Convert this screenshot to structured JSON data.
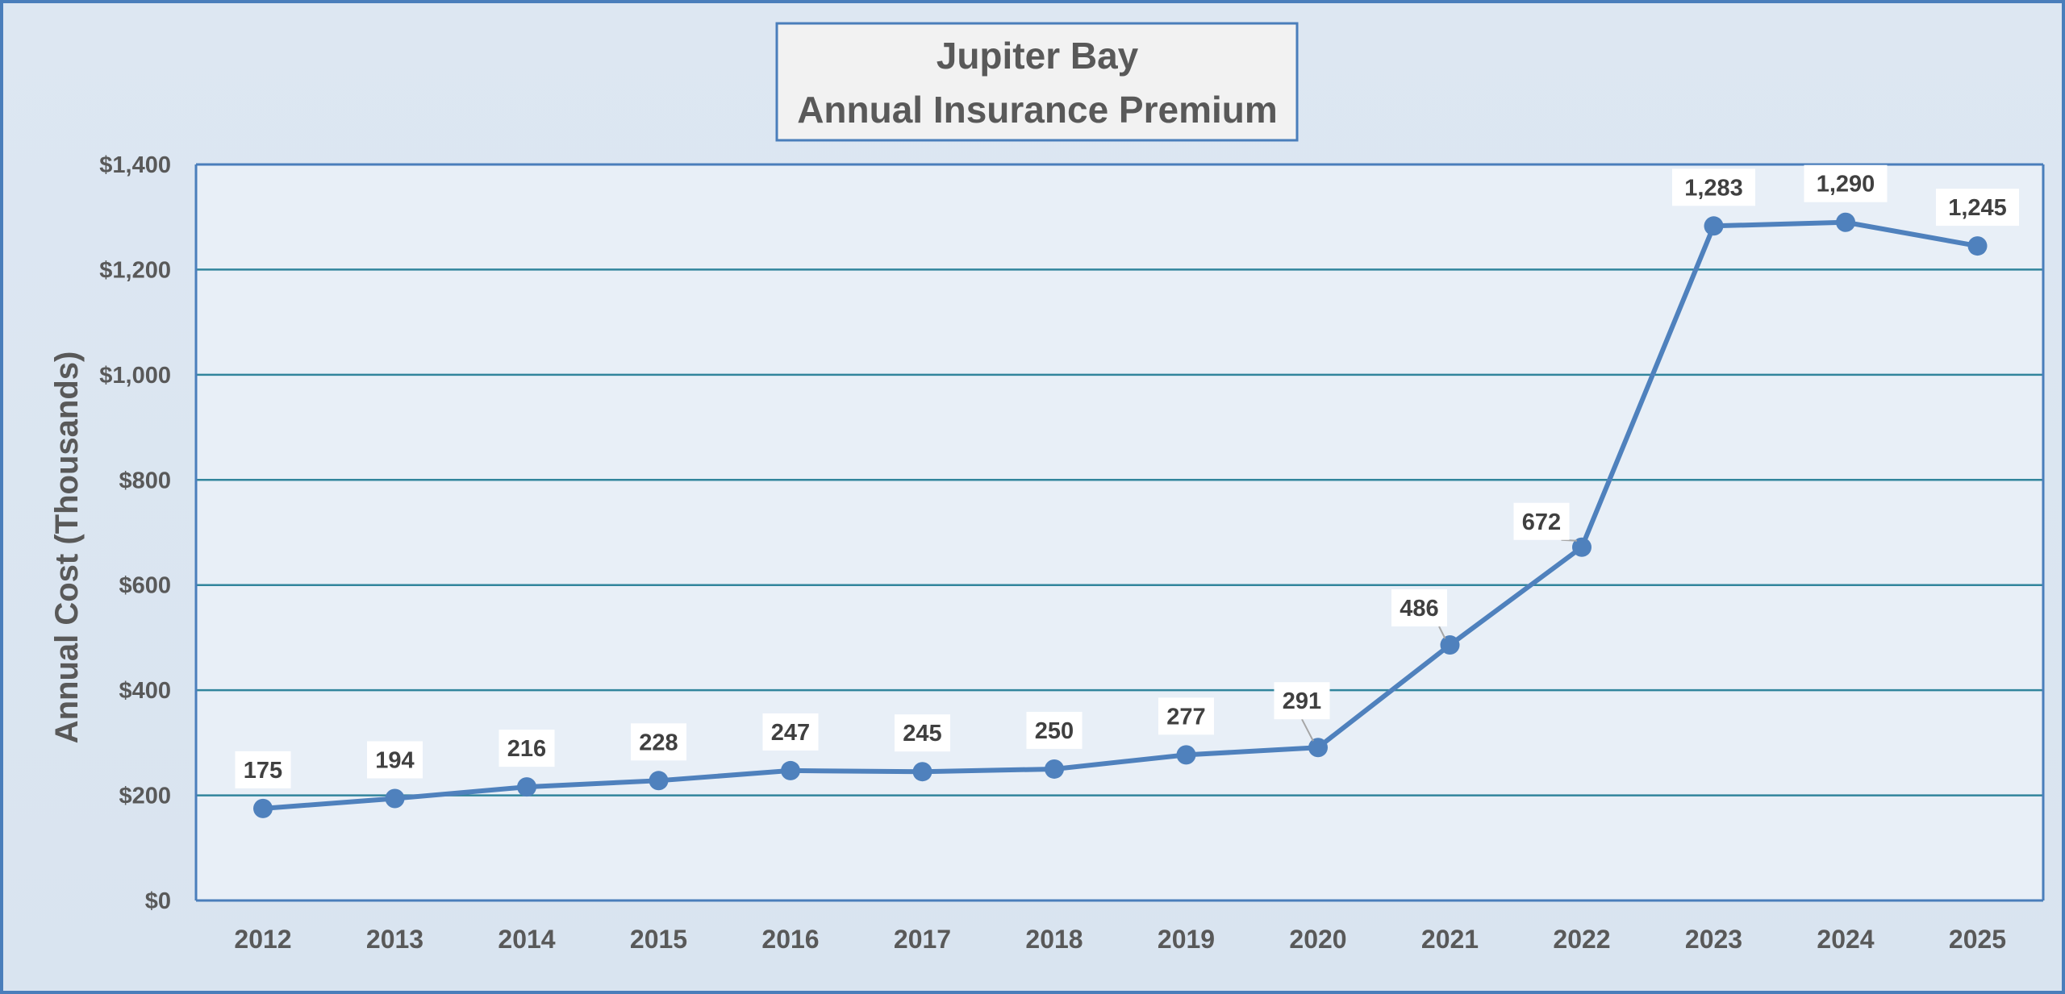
{
  "chart_data": {
    "type": "line",
    "title_lines": [
      "Jupiter Bay",
      "Annual Insurance Premium"
    ],
    "ylabel": "Annual Cost (Thousands)",
    "xlabel": "",
    "x": [
      "2012",
      "2013",
      "2014",
      "2015",
      "2016",
      "2017",
      "2018",
      "2019",
      "2020",
      "2021",
      "2022",
      "2023",
      "2024",
      "2025"
    ],
    "series": [
      {
        "values": [
          175,
          194,
          216,
          228,
          247,
          245,
          250,
          277,
          291,
          486,
          672,
          1283,
          1290,
          1245
        ]
      }
    ],
    "data_labels": [
      "175",
      "194",
      "216",
      "228",
      "247",
      "245",
      "250",
      "277",
      "291",
      "486",
      "672",
      "1,283",
      "1,290",
      "1,245"
    ],
    "y_ticks": [
      0,
      200,
      400,
      600,
      800,
      1000,
      1200,
      1400
    ],
    "y_tick_labels": [
      "$0",
      "$200",
      "$400",
      "$600",
      "$800",
      "$1,000",
      "$1,200",
      "$1,400"
    ],
    "ylim": [
      0,
      1400
    ],
    "grid": true,
    "legend": "none",
    "colors": {
      "line": "#4f81bd",
      "grid": "#31859c",
      "axis": "#4a7ebb",
      "plot_bg": "#e8eff7",
      "title_box_bg": "#f2f2f2",
      "title_box_border": "#4a7ebb"
    }
  }
}
